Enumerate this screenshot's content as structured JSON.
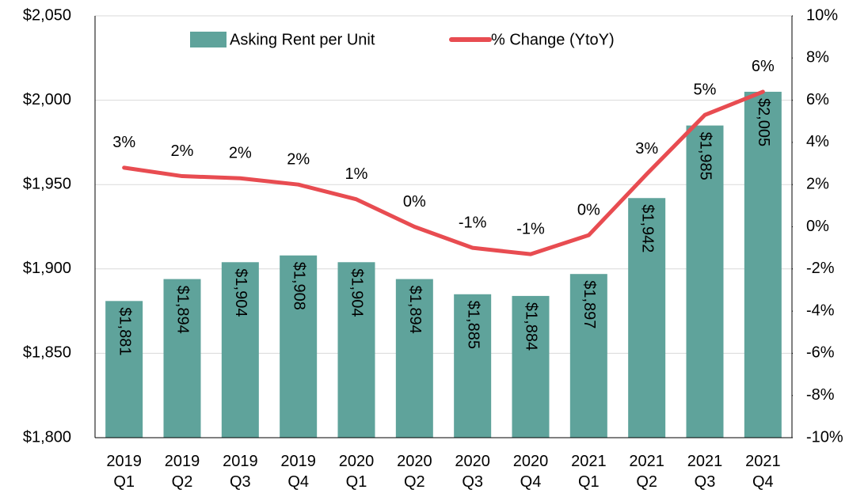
{
  "chart_data": {
    "type": "bar",
    "categories": [
      "2019 Q1",
      "2019 Q2",
      "2019 Q3",
      "2019 Q4",
      "2020 Q1",
      "2020 Q2",
      "2020 Q3",
      "2020 Q4",
      "2021 Q1",
      "2021 Q2",
      "2021 Q3",
      "2021 Q4"
    ],
    "series": [
      {
        "name": "Asking Rent per Unit",
        "type": "bar",
        "color": "#5fa39b",
        "axis": "y",
        "values": [
          1881,
          1894,
          1904,
          1908,
          1904,
          1894,
          1885,
          1884,
          1897,
          1942,
          1985,
          2005
        ],
        "value_labels": [
          "$1,881",
          "$1,894",
          "$1,904",
          "$1,908",
          "$1,904",
          "$1,894",
          "$1,885",
          "$1,884",
          "$1,897",
          "$1,942",
          "$1,985",
          "$2,005"
        ]
      },
      {
        "name": "% Change (YtoY)",
        "type": "line",
        "color": "#e84c51",
        "axis": "y2",
        "values": [
          2.8,
          2.4,
          2.3,
          2.0,
          1.3,
          0.0,
          -1.0,
          -1.3,
          -0.4,
          2.5,
          5.3,
          6.4
        ],
        "value_labels": [
          "3%",
          "2%",
          "2%",
          "2%",
          "1%",
          "0%",
          "-1%",
          "-1%",
          "0%",
          "3%",
          "5%",
          "6%"
        ]
      }
    ],
    "ylim": [
      1800,
      2050
    ],
    "yticks": [
      {
        "value": 1800,
        "label": "$1,800"
      },
      {
        "value": 1850,
        "label": "$1,850"
      },
      {
        "value": 1900,
        "label": "$1,900"
      },
      {
        "value": 1950,
        "label": "$1,950"
      },
      {
        "value": 2000,
        "label": "$2,000"
      },
      {
        "value": 2050,
        "label": "$2,050"
      }
    ],
    "y2lim": [
      -10,
      10
    ],
    "y2ticks": [
      {
        "value": -10,
        "label": "-10%"
      },
      {
        "value": -8,
        "label": "-8%"
      },
      {
        "value": -6,
        "label": "-6%"
      },
      {
        "value": -4,
        "label": "-4%"
      },
      {
        "value": -2,
        "label": "-2%"
      },
      {
        "value": 0,
        "label": "0%"
      },
      {
        "value": 2,
        "label": "2%"
      },
      {
        "value": 4,
        "label": "4%"
      },
      {
        "value": 6,
        "label": "6%"
      },
      {
        "value": 8,
        "label": "8%"
      },
      {
        "value": 10,
        "label": "10%"
      }
    ],
    "grid": true,
    "legend": "top"
  }
}
